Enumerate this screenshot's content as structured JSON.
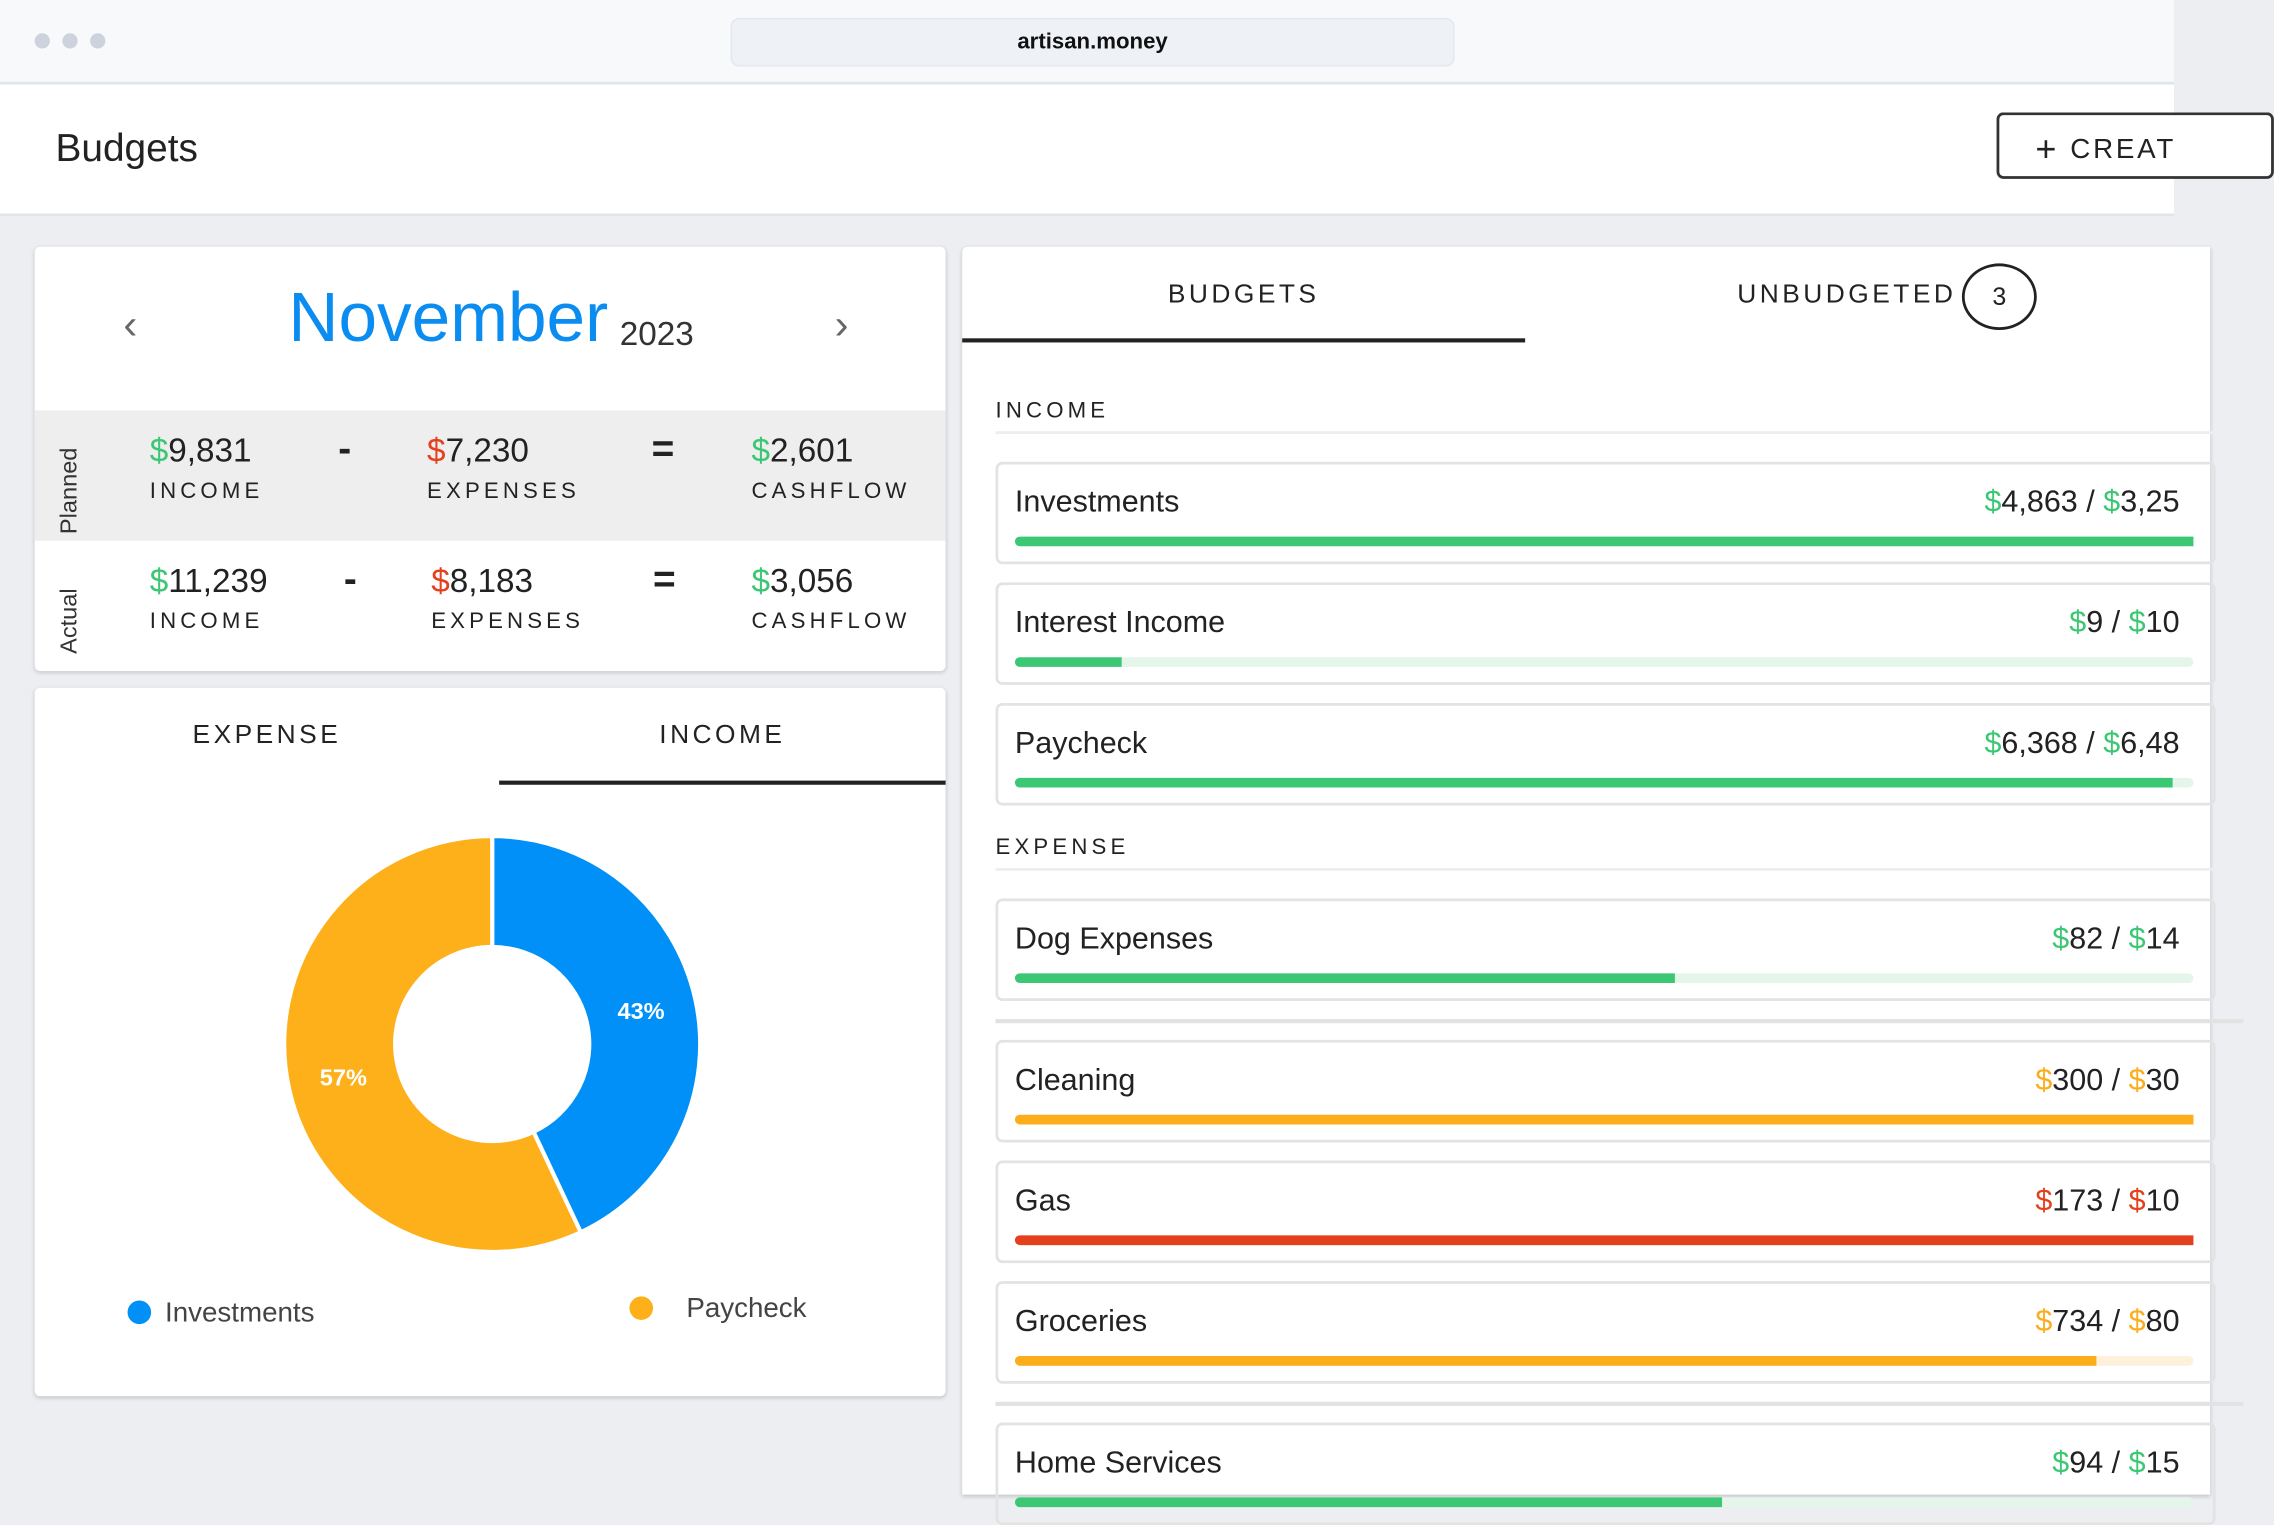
{
  "browser": {
    "url": "artisan.money"
  },
  "header": {
    "title": "Budgets",
    "create_label": "CREAT",
    "create_icon": "plus-icon"
  },
  "month": {
    "name": "November",
    "year": "2023",
    "prev_icon": "chevron-left-icon",
    "next_icon": "chevron-right-icon"
  },
  "summary": {
    "planned": {
      "label": "Planned",
      "income": "9,831",
      "expenses": "7,230",
      "cashflow": "2,601"
    },
    "actual": {
      "label": "Actual",
      "income": "11,239",
      "expenses": "8,183",
      "cashflow": "3,056"
    },
    "labels": {
      "income": "INCOME",
      "expenses": "EXPENSES",
      "cashflow": "CASHFLOW",
      "minus": "-",
      "equals": "=",
      "dollar": "$"
    }
  },
  "chart_tabs": {
    "expense": "EXPENSE",
    "income": "INCOME",
    "active": "INCOME"
  },
  "chart_data": {
    "type": "pie",
    "donut": true,
    "categories": [
      "Investments",
      "Paycheck"
    ],
    "values": [
      43,
      57
    ],
    "labels": [
      "43%",
      "57%"
    ],
    "colors": [
      "#0090f8",
      "#fdb01a"
    ],
    "legend": "bottom"
  },
  "budget_tabs": {
    "budgets": "BUDGETS",
    "unbudgeted": "UNBUDGETED",
    "unbudgeted_count": "3"
  },
  "sections": {
    "income": "INCOME",
    "expense": "EXPENSE"
  },
  "income_items": [
    {
      "name": "Investments",
      "actual": "4,863",
      "planned": "3,25",
      "color": "#3cc774",
      "track": "#e4f6ea",
      "progress": 1.0
    },
    {
      "name": "Interest Income",
      "actual": "9",
      "planned": "10",
      "color": "#3cc774",
      "track": "#e4f6ea",
      "progress": 0.09
    },
    {
      "name": "Paycheck",
      "actual": "6,368",
      "planned": "6,48",
      "color": "#3cc774",
      "track": "#e4f6ea",
      "progress": 0.982
    }
  ],
  "expense_items": [
    {
      "name": "Dog Expenses",
      "actual": "82",
      "planned": "14",
      "color": "#3cc774",
      "track": "#e4f6ea",
      "progress": 0.56
    },
    {
      "name": "Cleaning",
      "actual": "300",
      "planned": "30",
      "color": "#fbad1b",
      "track": "#fdf1dc",
      "progress": 1.0
    },
    {
      "name": "Gas",
      "actual": "173",
      "planned": "10",
      "color": "#e5401d",
      "track": "#fbe0da",
      "progress": 1.0
    },
    {
      "name": "Groceries",
      "actual": "734",
      "planned": "80",
      "color": "#fbad1b",
      "track": "#fdf1dc",
      "progress": 0.9175
    },
    {
      "name": "Home Services",
      "actual": "94",
      "planned": "15",
      "color": "#3cc774",
      "track": "#e4f6ea",
      "progress": 0.6
    }
  ]
}
